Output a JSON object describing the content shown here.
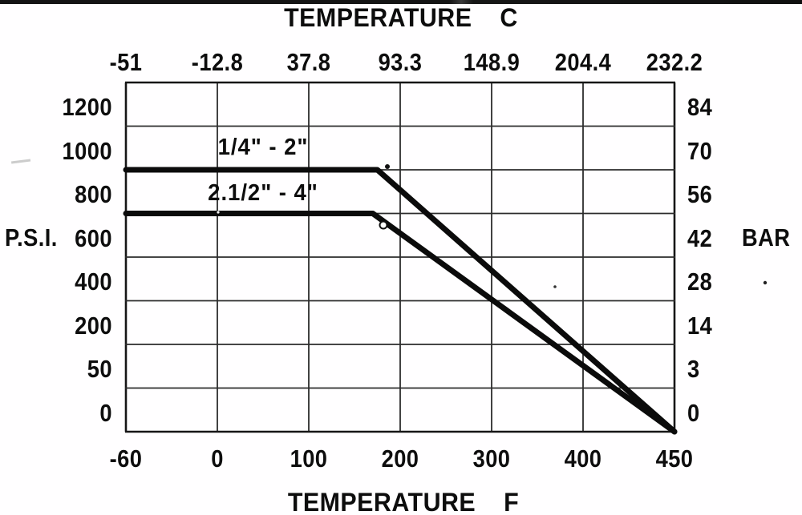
{
  "page": {
    "background_color": "#ffffff",
    "ink_color": "#111111",
    "description": "Scanned valve pressure-temperature rating chart"
  },
  "chart_data": {
    "type": "line",
    "title": "",
    "grid": "on",
    "legend_position": "inline-above-lines",
    "x_axis": {
      "label_top": "TEMPERATURE  C",
      "label_bottom": "TEMPERATURE  F",
      "ticks_top_c": [
        "-51",
        "-12.8",
        "37.8",
        "93.3",
        "148.9",
        "204.4",
        "232.2"
      ],
      "ticks_bottom_f": [
        "-60",
        "0",
        "100",
        "200",
        "300",
        "400",
        "450"
      ],
      "range_f": [
        -60,
        450
      ]
    },
    "y_axis": {
      "unit_left": "P.S.I.",
      "unit_right": "BAR",
      "ticks_left_psi": [
        "1200",
        "1000",
        "800",
        "600",
        "400",
        "200",
        "50",
        "0"
      ],
      "ticks_right_bar": [
        "84",
        "70",
        "56",
        "42",
        "28",
        "14",
        "3",
        "0"
      ],
      "range_psi": [
        0,
        1400
      ]
    },
    "series": [
      {
        "name": "1/4\" - 2\"",
        "points_f_psi": [
          [
            -60,
            1000
          ],
          [
            175,
            1000
          ],
          [
            450,
            0
          ]
        ]
      },
      {
        "name": "2.1/2\" - 4\"",
        "points_f_psi": [
          [
            -60,
            800
          ],
          [
            170,
            800
          ],
          [
            450,
            0
          ]
        ]
      }
    ]
  }
}
